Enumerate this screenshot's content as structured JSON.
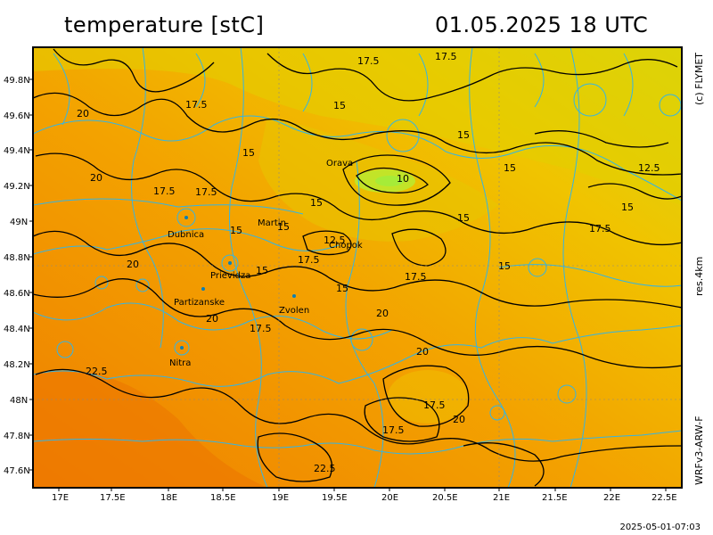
{
  "header": {
    "title_left": "temperature [stC]",
    "title_right": "01.05.2025   18 UTC"
  },
  "side": {
    "credit": "(c) FLYMET",
    "resolution": "res.4km",
    "model": "WRFv3-ARW-F"
  },
  "footer": {
    "timestamp": "2025-05-01-07:03"
  },
  "axes": {
    "lat_labels": [
      "49.8N",
      "49.6N",
      "49.4N",
      "49.2N",
      "49N",
      "48.8N",
      "48.6N",
      "48.4N",
      "48.2N",
      "48N",
      "47.8N",
      "47.6N"
    ],
    "lon_labels": [
      "17E",
      "17.5E",
      "18E",
      "18.5E",
      "19E",
      "19.5E",
      "20E",
      "20.5E",
      "21E",
      "21.5E",
      "22E",
      "22.5E"
    ]
  },
  "cities": [
    {
      "name": "Orava"
    },
    {
      "name": "Martin"
    },
    {
      "name": "Dubnica"
    },
    {
      "name": "Chopok"
    },
    {
      "name": "Prievidza"
    },
    {
      "name": "Partizanske"
    },
    {
      "name": "Zvolen"
    },
    {
      "name": "Nitra"
    }
  ],
  "contour_labels": [
    "17.5",
    "17.5",
    "20",
    "15",
    "17.5",
    "15",
    "15",
    "20",
    "15",
    "12.5",
    "10",
    "17.5",
    "17.5",
    "15",
    "15",
    "15",
    "15",
    "17.5",
    "15",
    "12.5",
    "17.5",
    "15",
    "20",
    "15",
    "17.5",
    "20",
    "17.5",
    "20",
    "22.5",
    "20",
    "17.5",
    "17.5",
    "22.5"
  ],
  "colors": {
    "warm": "#f08c00",
    "mid": "#f5b400",
    "cool": "#d8dc10",
    "cold": "#b8e020",
    "borders": "#33b5e5",
    "contours": "#000000"
  }
}
